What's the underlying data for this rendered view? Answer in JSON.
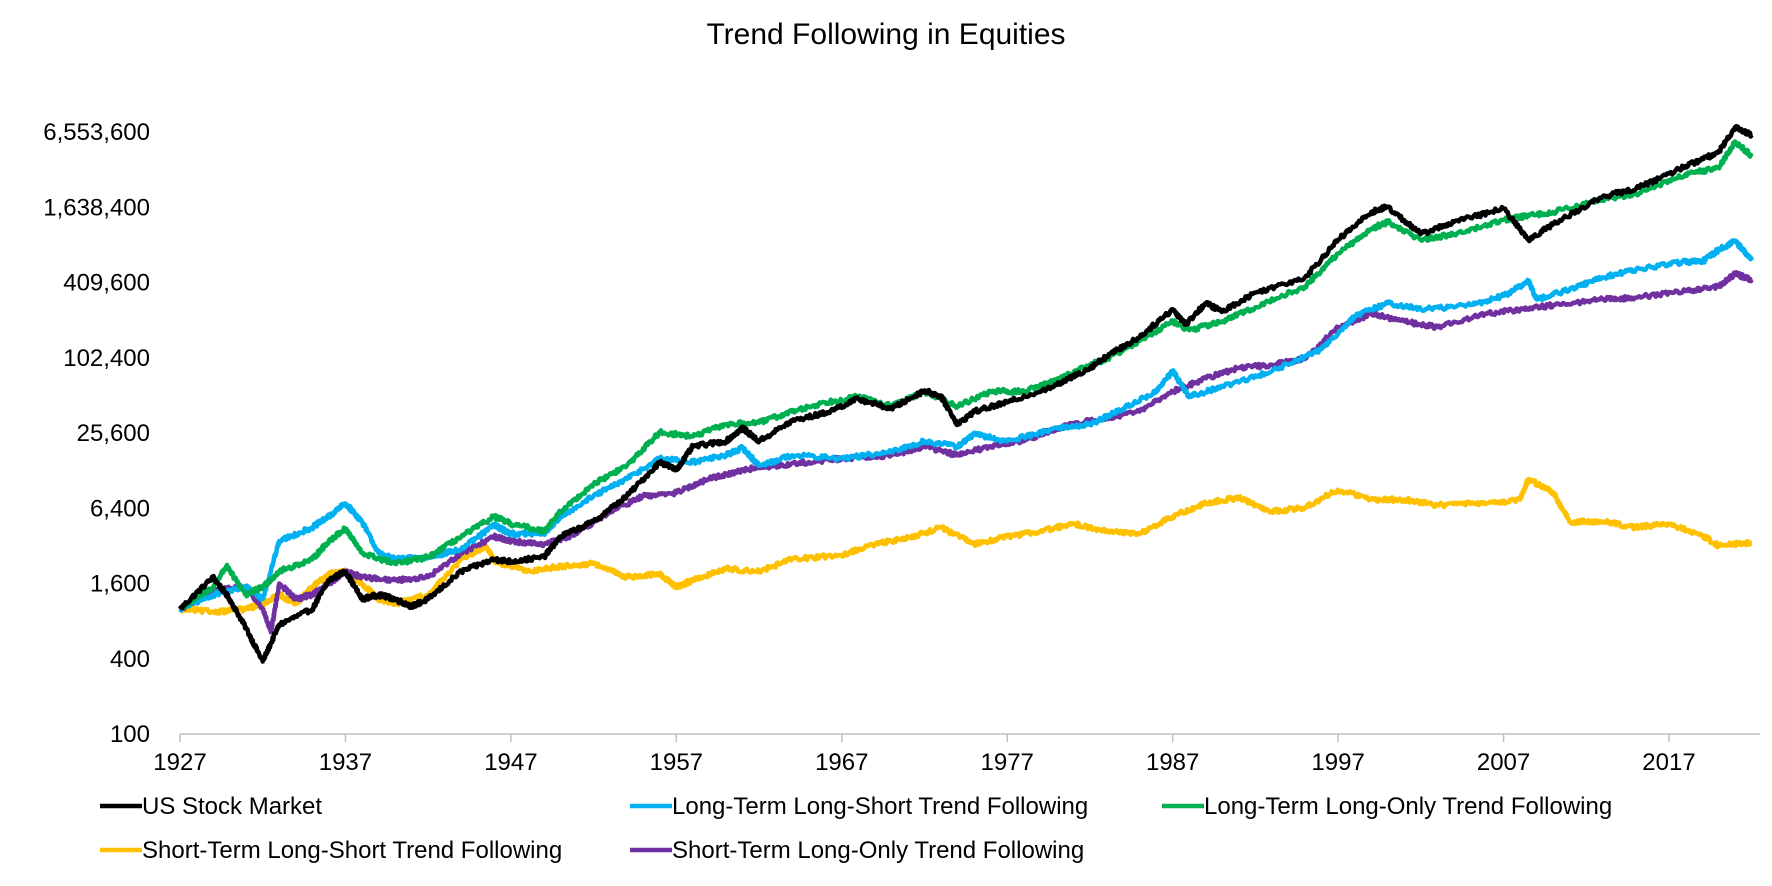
{
  "chart_data": {
    "type": "line",
    "title": "Trend Following in Equities",
    "xlabel": "",
    "ylabel": "",
    "y_scale": "log2",
    "ylim": [
      100,
      6553600
    ],
    "xlim": [
      1927,
      2022.5
    ],
    "y_ticks": [
      100,
      400,
      1600,
      6400,
      25600,
      102400,
      409600,
      1638400,
      6553600
    ],
    "y_tick_labels": [
      "100",
      "400",
      "1,600",
      "6,400",
      "25,600",
      "102,400",
      "409,600",
      "1,638,400",
      "6,553,600"
    ],
    "x_ticks": [
      1927,
      1937,
      1947,
      1957,
      1967,
      1977,
      1987,
      1997,
      2007,
      2017
    ],
    "x_tick_labels": [
      "1927",
      "1937",
      "1947",
      "1957",
      "1967",
      "1977",
      "1987",
      "1997",
      "2007",
      "2017"
    ],
    "grid": false,
    "legend_position": "bottom",
    "series": [
      {
        "name": "US Stock Market",
        "color": "#000000",
        "points": [
          [
            1927,
            1000
          ],
          [
            1929,
            1800
          ],
          [
            1930,
            1200
          ],
          [
            1931,
            700
          ],
          [
            1932,
            380
          ],
          [
            1933,
            750
          ],
          [
            1935,
            1000
          ],
          [
            1936,
            1700
          ],
          [
            1937,
            2000
          ],
          [
            1938,
            1200
          ],
          [
            1939,
            1300
          ],
          [
            1940,
            1200
          ],
          [
            1941,
            1050
          ],
          [
            1942,
            1200
          ],
          [
            1944,
            2000
          ],
          [
            1946,
            2500
          ],
          [
            1947,
            2400
          ],
          [
            1949,
            2600
          ],
          [
            1950,
            3800
          ],
          [
            1952,
            5000
          ],
          [
            1954,
            8000
          ],
          [
            1956,
            15000
          ],
          [
            1957,
            13000
          ],
          [
            1958,
            20000
          ],
          [
            1960,
            22000
          ],
          [
            1961,
            28000
          ],
          [
            1962,
            22000
          ],
          [
            1964,
            32000
          ],
          [
            1966,
            37000
          ],
          [
            1968,
            48000
          ],
          [
            1970,
            40000
          ],
          [
            1972,
            56000
          ],
          [
            1973,
            50000
          ],
          [
            1974,
            30000
          ],
          [
            1975,
            38000
          ],
          [
            1977,
            45000
          ],
          [
            1980,
            62000
          ],
          [
            1982,
            85000
          ],
          [
            1983,
            105000
          ],
          [
            1985,
            150000
          ],
          [
            1987,
            250000
          ],
          [
            1987.8,
            190000
          ],
          [
            1989,
            280000
          ],
          [
            1990,
            240000
          ],
          [
            1992,
            340000
          ],
          [
            1995,
            450000
          ],
          [
            1997,
            900000
          ],
          [
            1999,
            1500000
          ],
          [
            2000,
            1650000
          ],
          [
            2002,
            1000000
          ],
          [
            2004,
            1250000
          ],
          [
            2007,
            1600000
          ],
          [
            2008.5,
            900000
          ],
          [
            2010,
            1200000
          ],
          [
            2013,
            2000000
          ],
          [
            2015,
            2300000
          ],
          [
            2018,
            3500000
          ],
          [
            2020,
            4500000
          ],
          [
            2021,
            7200000
          ],
          [
            2022,
            6200000
          ]
        ]
      },
      {
        "name": "Long-Term Long-Short Trend Following",
        "color": "#00B0F0",
        "points": [
          [
            1927,
            1000
          ],
          [
            1929,
            1300
          ],
          [
            1931,
            1500
          ],
          [
            1932,
            1200
          ],
          [
            1933,
            3500
          ],
          [
            1935,
            4500
          ],
          [
            1936,
            5500
          ],
          [
            1937,
            7000
          ],
          [
            1938,
            5000
          ],
          [
            1939,
            2800
          ],
          [
            1940,
            2500
          ],
          [
            1942,
            2600
          ],
          [
            1944,
            3000
          ],
          [
            1946,
            4700
          ],
          [
            1947,
            4000
          ],
          [
            1949,
            4000
          ],
          [
            1950,
            5500
          ],
          [
            1952,
            8000
          ],
          [
            1954,
            11000
          ],
          [
            1956,
            16000
          ],
          [
            1958,
            15000
          ],
          [
            1960,
            17000
          ],
          [
            1961,
            19500
          ],
          [
            1962,
            14000
          ],
          [
            1964,
            17000
          ],
          [
            1967,
            16000
          ],
          [
            1970,
            18000
          ],
          [
            1972,
            22000
          ],
          [
            1974,
            20000
          ],
          [
            1975,
            25000
          ],
          [
            1977,
            22000
          ],
          [
            1980,
            28000
          ],
          [
            1982,
            30000
          ],
          [
            1984,
            40000
          ],
          [
            1986,
            55000
          ],
          [
            1987,
            80000
          ],
          [
            1988,
            50000
          ],
          [
            1990,
            60000
          ],
          [
            1993,
            80000
          ],
          [
            1996,
            120000
          ],
          [
            1998,
            220000
          ],
          [
            2000,
            280000
          ],
          [
            2002,
            250000
          ],
          [
            2005,
            270000
          ],
          [
            2007,
            320000
          ],
          [
            2008.5,
            420000
          ],
          [
            2009,
            300000
          ],
          [
            2011,
            360000
          ],
          [
            2013,
            450000
          ],
          [
            2015,
            520000
          ],
          [
            2018,
            600000
          ],
          [
            2019,
            600000
          ],
          [
            2020,
            750000
          ],
          [
            2021,
            880000
          ],
          [
            2022,
            620000
          ]
        ]
      },
      {
        "name": "Long-Term Long-Only Trend Following",
        "color": "#00B050",
        "points": [
          [
            1927,
            1000
          ],
          [
            1929,
            1500
          ],
          [
            1929.8,
            2200
          ],
          [
            1931,
            1300
          ],
          [
            1932,
            1500
          ],
          [
            1933,
            2000
          ],
          [
            1935,
            2500
          ],
          [
            1936,
            3500
          ],
          [
            1937,
            4400
          ],
          [
            1938,
            2800
          ],
          [
            1940,
            2300
          ],
          [
            1942,
            2600
          ],
          [
            1944,
            3800
          ],
          [
            1946,
            5500
          ],
          [
            1947,
            4800
          ],
          [
            1949,
            4200
          ],
          [
            1950,
            6000
          ],
          [
            1952,
            10000
          ],
          [
            1954,
            14000
          ],
          [
            1956,
            26000
          ],
          [
            1958,
            24000
          ],
          [
            1960,
            30000
          ],
          [
            1962,
            31000
          ],
          [
            1964,
            38000
          ],
          [
            1966,
            45000
          ],
          [
            1968,
            50000
          ],
          [
            1970,
            42000
          ],
          [
            1972,
            55000
          ],
          [
            1974,
            42000
          ],
          [
            1976,
            55000
          ],
          [
            1978,
            55000
          ],
          [
            1980,
            68000
          ],
          [
            1982,
            90000
          ],
          [
            1983,
            100000
          ],
          [
            1985,
            140000
          ],
          [
            1987,
            200000
          ],
          [
            1988,
            170000
          ],
          [
            1990,
            200000
          ],
          [
            1992,
            260000
          ],
          [
            1995,
            380000
          ],
          [
            1997,
            700000
          ],
          [
            1999,
            1100000
          ],
          [
            2000,
            1250000
          ],
          [
            2002,
            900000
          ],
          [
            2004,
            1000000
          ],
          [
            2007,
            1300000
          ],
          [
            2008.5,
            1400000
          ],
          [
            2010,
            1500000
          ],
          [
            2013,
            1900000
          ],
          [
            2015,
            2100000
          ],
          [
            2018,
            3000000
          ],
          [
            2020,
            3400000
          ],
          [
            2021,
            5500000
          ],
          [
            2022,
            4200000
          ]
        ]
      },
      {
        "name": "Short-Term Long-Short Trend Following",
        "color": "#FFC000",
        "points": [
          [
            1927,
            1000
          ],
          [
            1929,
            950
          ],
          [
            1931,
            1000
          ],
          [
            1932,
            1100
          ],
          [
            1933,
            1300
          ],
          [
            1934,
            1100
          ],
          [
            1935,
            1500
          ],
          [
            1936,
            1900
          ],
          [
            1937,
            2000
          ],
          [
            1938,
            1600
          ],
          [
            1939,
            1200
          ],
          [
            1940,
            1100
          ],
          [
            1942,
            1300
          ],
          [
            1944,
            2500
          ],
          [
            1945.5,
            3200
          ],
          [
            1946,
            2400
          ],
          [
            1948,
            2000
          ],
          [
            1950,
            2200
          ],
          [
            1952,
            2300
          ],
          [
            1954,
            1800
          ],
          [
            1956,
            1900
          ],
          [
            1957,
            1500
          ],
          [
            1958,
            1700
          ],
          [
            1960,
            2100
          ],
          [
            1962,
            2000
          ],
          [
            1964,
            2500
          ],
          [
            1967,
            2700
          ],
          [
            1969,
            3300
          ],
          [
            1971,
            3700
          ],
          [
            1973,
            4500
          ],
          [
            1975,
            3300
          ],
          [
            1977,
            3800
          ],
          [
            1979,
            4200
          ],
          [
            1981,
            4800
          ],
          [
            1983,
            4200
          ],
          [
            1985,
            4000
          ],
          [
            1987,
            5500
          ],
          [
            1989,
            7000
          ],
          [
            1991,
            7800
          ],
          [
            1993,
            6000
          ],
          [
            1995,
            6500
          ],
          [
            1997,
            9000
          ],
          [
            1999,
            7500
          ],
          [
            2001,
            7500
          ],
          [
            2003,
            6800
          ],
          [
            2006,
            7000
          ],
          [
            2008,
            7500
          ],
          [
            2008.5,
            11000
          ],
          [
            2010,
            8500
          ],
          [
            2011,
            5000
          ],
          [
            2013,
            5000
          ],
          [
            2015,
            4500
          ],
          [
            2017,
            4800
          ],
          [
            2019,
            3900
          ],
          [
            2020,
            3200
          ],
          [
            2022,
            3400
          ]
        ]
      },
      {
        "name": "Short-Term Long-Only Trend Following",
        "color": "#7030A0",
        "points": [
          [
            1927,
            1000
          ],
          [
            1929,
            1400
          ],
          [
            1931,
            1500
          ],
          [
            1932,
            1000
          ],
          [
            1932.5,
            650
          ],
          [
            1933,
            1600
          ],
          [
            1934,
            1200
          ],
          [
            1935,
            1300
          ],
          [
            1936,
            1600
          ],
          [
            1937,
            2000
          ],
          [
            1938,
            1800
          ],
          [
            1940,
            1700
          ],
          [
            1942,
            1800
          ],
          [
            1944,
            2800
          ],
          [
            1946,
            3800
          ],
          [
            1947,
            3500
          ],
          [
            1949,
            3300
          ],
          [
            1951,
            4000
          ],
          [
            1953,
            6000
          ],
          [
            1955,
            8000
          ],
          [
            1957,
            8500
          ],
          [
            1959,
            11000
          ],
          [
            1961,
            13000
          ],
          [
            1963,
            14000
          ],
          [
            1965,
            15000
          ],
          [
            1967,
            16000
          ],
          [
            1970,
            17000
          ],
          [
            1972,
            20000
          ],
          [
            1974,
            17000
          ],
          [
            1976,
            20000
          ],
          [
            1978,
            22000
          ],
          [
            1980,
            28000
          ],
          [
            1982,
            32000
          ],
          [
            1985,
            38000
          ],
          [
            1987,
            55000
          ],
          [
            1989,
            70000
          ],
          [
            1991,
            85000
          ],
          [
            1993,
            90000
          ],
          [
            1995,
            100000
          ],
          [
            1997,
            180000
          ],
          [
            1999,
            230000
          ],
          [
            2001,
            200000
          ],
          [
            2003,
            180000
          ],
          [
            2006,
            230000
          ],
          [
            2008,
            250000
          ],
          [
            2010,
            270000
          ],
          [
            2013,
            300000
          ],
          [
            2015,
            310000
          ],
          [
            2018,
            350000
          ],
          [
            2020,
            380000
          ],
          [
            2021,
            480000
          ],
          [
            2022,
            430000
          ]
        ]
      }
    ]
  }
}
